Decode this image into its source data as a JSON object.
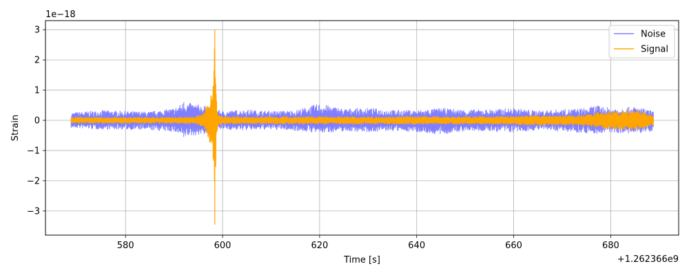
{
  "chart_data": {
    "type": "line",
    "xlabel": "Time [s]",
    "ylabel": "Strain",
    "x_offset_label": "+1.262366e9",
    "y_scale_label": "1e−18",
    "xlim": [
      563.5,
      694.0
    ],
    "ylim": [
      -3.8,
      3.3
    ],
    "x_ticks": [
      580,
      600,
      620,
      640,
      660,
      680
    ],
    "x_tick_labels": [
      "580",
      "600",
      "620",
      "640",
      "660",
      "680"
    ],
    "y_ticks": [
      -3,
      -2,
      -1,
      0,
      1,
      2,
      3
    ],
    "y_tick_labels": [
      "−3",
      "−2",
      "−1",
      "0",
      "1",
      "2",
      "3"
    ],
    "grid": true,
    "legend_position": "top-right",
    "series": [
      {
        "name": "Noise",
        "color": "#7f7fff",
        "x": [
          568.8,
          575,
          580,
          585,
          590,
          592,
          595,
          597,
          600,
          605,
          610,
          615,
          620,
          625,
          630,
          635,
          640,
          645,
          650,
          655,
          660,
          665,
          670,
          675,
          677,
          680,
          685,
          688.8
        ],
        "upper": [
          0.25,
          0.33,
          0.3,
          0.28,
          0.4,
          0.6,
          0.52,
          0.45,
          0.3,
          0.35,
          0.3,
          0.33,
          0.55,
          0.38,
          0.4,
          0.34,
          0.33,
          0.4,
          0.35,
          0.36,
          0.4,
          0.32,
          0.36,
          0.4,
          0.5,
          0.4,
          0.45,
          0.3
        ],
        "lower": [
          -0.25,
          -0.3,
          -0.3,
          -0.32,
          -0.38,
          -0.55,
          -0.48,
          -0.45,
          -0.3,
          -0.33,
          -0.3,
          -0.34,
          -0.42,
          -0.36,
          -0.38,
          -0.35,
          -0.38,
          -0.48,
          -0.35,
          -0.36,
          -0.4,
          -0.32,
          -0.36,
          -0.42,
          -0.45,
          -0.4,
          -0.45,
          -0.35
        ]
      },
      {
        "name": "Signal",
        "color": "#ffa500",
        "x": [
          568.8,
          580,
          590,
          594,
          596,
          597.2,
          597.8,
          598.1,
          598.4,
          598.7,
          599.0,
          600,
          605,
          610,
          620,
          630,
          640,
          650,
          660,
          665,
          670,
          675,
          678,
          682,
          686,
          688.8
        ],
        "upper": [
          0.1,
          0.1,
          0.1,
          0.12,
          0.2,
          0.6,
          1.2,
          1.6,
          3.0,
          0.8,
          0.2,
          0.12,
          0.11,
          0.12,
          0.12,
          0.12,
          0.13,
          0.12,
          0.14,
          0.18,
          0.15,
          0.18,
          0.28,
          0.3,
          0.32,
          0.15
        ],
        "lower": [
          -0.1,
          -0.1,
          -0.1,
          -0.12,
          -0.2,
          -0.6,
          -1.2,
          -1.6,
          -3.45,
          -0.8,
          -0.2,
          -0.12,
          -0.11,
          -0.12,
          -0.12,
          -0.12,
          -0.13,
          -0.12,
          -0.14,
          -0.18,
          -0.15,
          -0.18,
          -0.28,
          -0.3,
          -0.3,
          -0.15
        ]
      }
    ]
  }
}
